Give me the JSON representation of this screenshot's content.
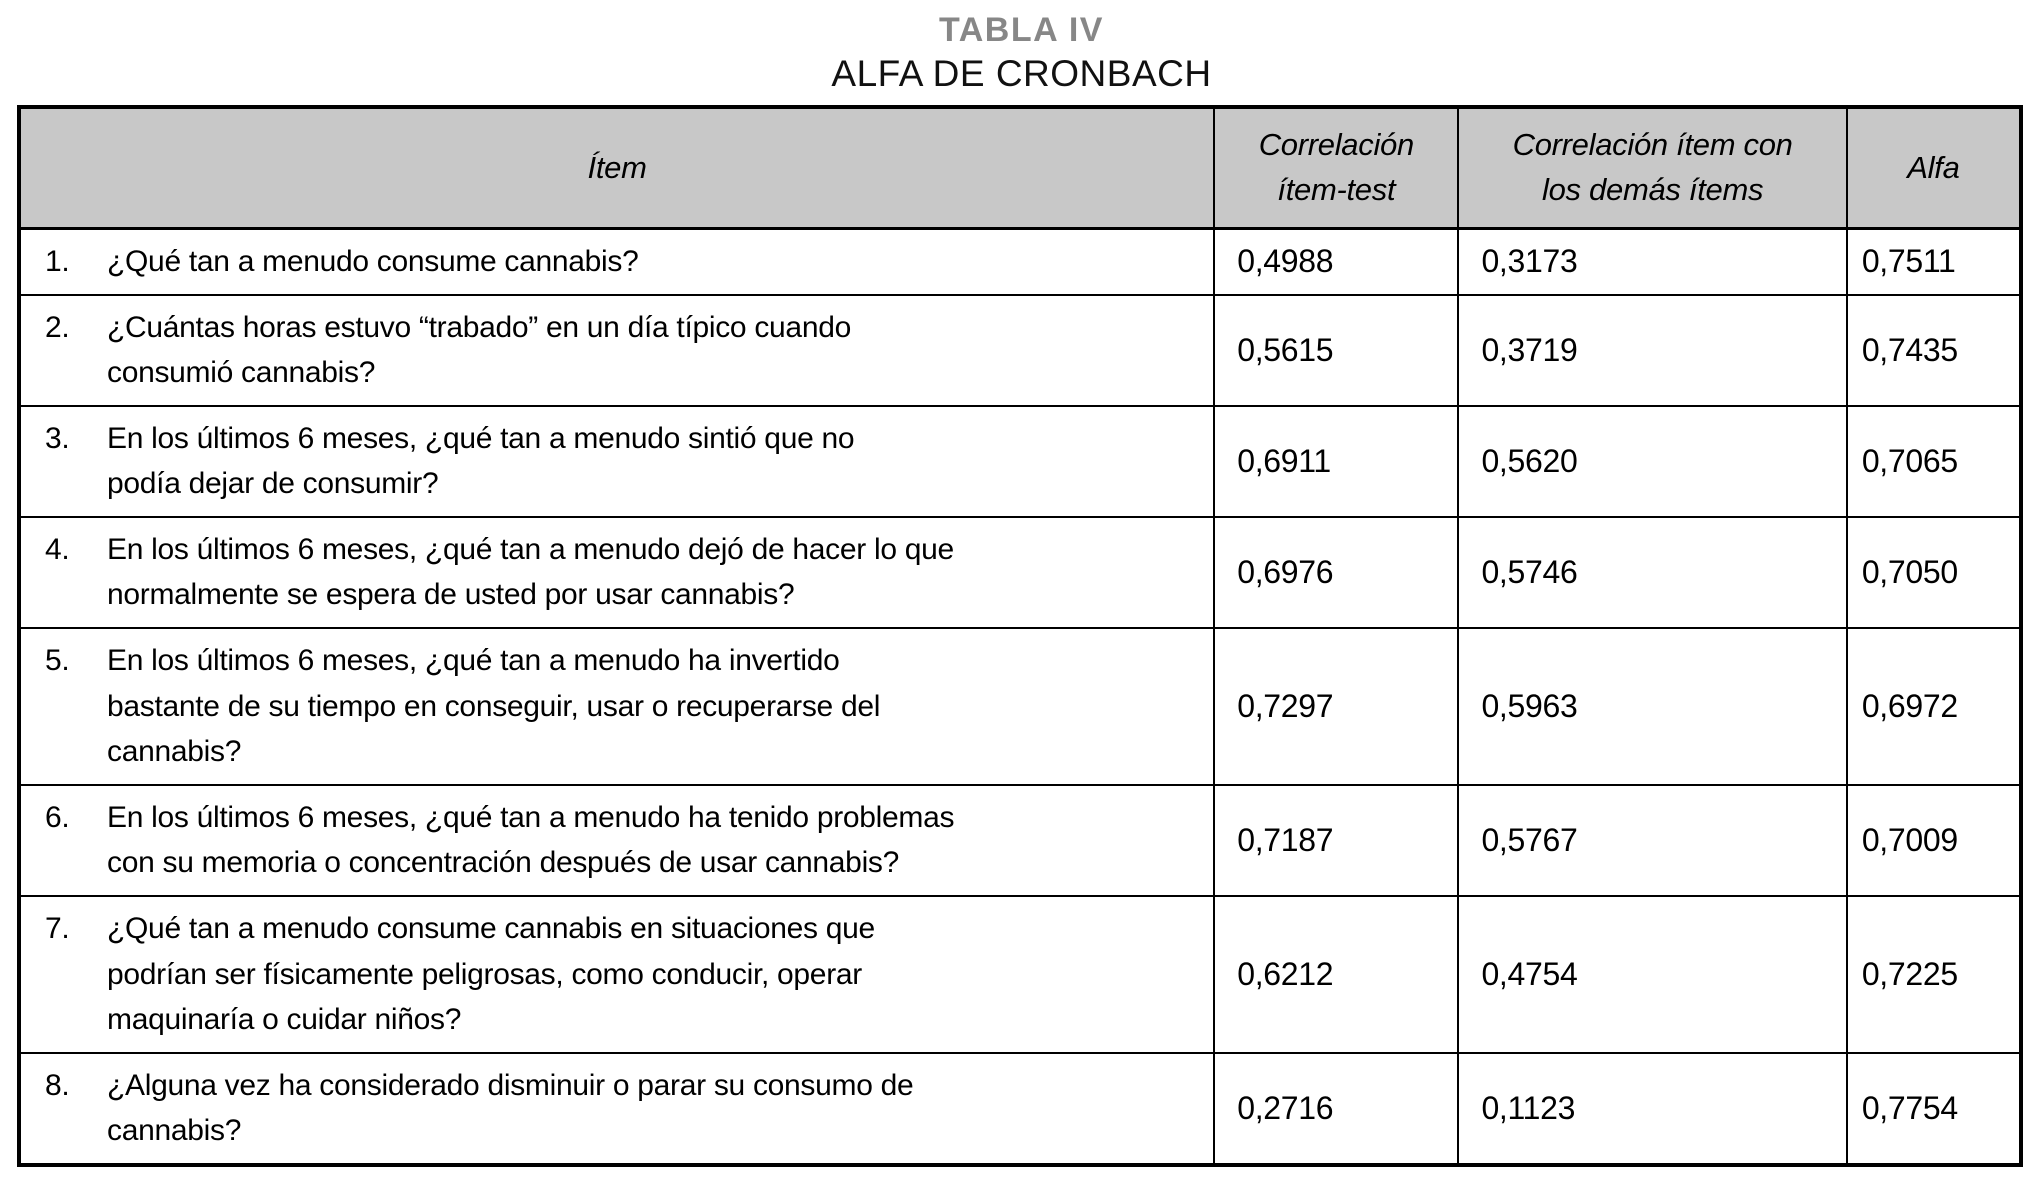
{
  "caption": {
    "title": "TABLA IV",
    "subtitle": "ALFA DE CRONBACH"
  },
  "colors": {
    "header_background": "#c8c8c8",
    "title_gray": "#878787",
    "border": "#000000",
    "text": "#000000"
  },
  "table": {
    "headers": {
      "item": "Ítem",
      "corr_item_test": "Correlación\nítem-test",
      "corr_item_rest": "Correlación ítem con\nlos demás ítems",
      "alfa": "Alfa"
    },
    "rows": [
      {
        "num": "1.",
        "item": "¿Qué tan a menudo consume cannabis?",
        "corr_item_test": "0,4988",
        "corr_item_rest": "0,3173",
        "alfa": "0,7511"
      },
      {
        "num": "2.",
        "item": "¿Cuántas horas estuvo “trabado” en un día típico cuando\nconsumió cannabis?",
        "corr_item_test": "0,5615",
        "corr_item_rest": "0,3719",
        "alfa": "0,7435"
      },
      {
        "num": "3.",
        "item": "En los últimos 6 meses, ¿qué tan a menudo sintió que no\npodía dejar de consumir?",
        "corr_item_test": "0,6911",
        "corr_item_rest": "0,5620",
        "alfa": "0,7065"
      },
      {
        "num": "4.",
        "item": "En los últimos 6 meses, ¿qué tan a menudo dejó de hacer lo que\nnormalmente se espera de usted por usar cannabis?",
        "corr_item_test": "0,6976",
        "corr_item_rest": "0,5746",
        "alfa": "0,7050"
      },
      {
        "num": "5.",
        "item": "En los últimos 6 meses, ¿qué tan a menudo ha invertido\nbastante de su tiempo en conseguir, usar o recuperarse del\ncannabis?",
        "corr_item_test": "0,7297",
        "corr_item_rest": "0,5963",
        "alfa": "0,6972"
      },
      {
        "num": "6.",
        "item": "En los últimos 6 meses, ¿qué tan a menudo ha tenido problemas\ncon su memoria o concentración después de usar cannabis?",
        "corr_item_test": "0,7187",
        "corr_item_rest": "0,5767",
        "alfa": "0,7009"
      },
      {
        "num": "7.",
        "item": "¿Qué tan a menudo consume cannabis en situaciones que\npodrían ser físicamente peligrosas, como conducir, operar\nmaquinaría o cuidar niños?",
        "corr_item_test": "0,6212",
        "corr_item_rest": "0,4754",
        "alfa": "0,7225"
      },
      {
        "num": "8.",
        "item": "¿Alguna vez ha considerado disminuir o parar su consumo de\ncannabis?",
        "corr_item_test": "0,2716",
        "corr_item_rest": "0,1123",
        "alfa": "0,7754"
      }
    ]
  }
}
